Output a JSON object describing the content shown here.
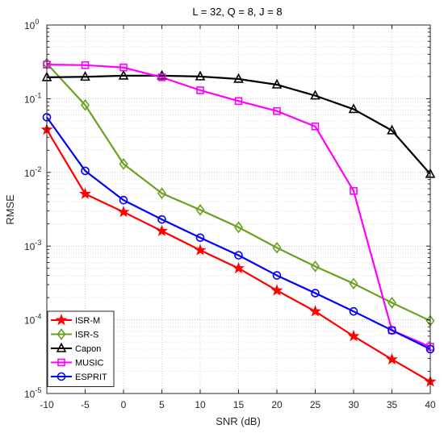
{
  "chart_data": {
    "type": "line",
    "title": "L = 32, Q = 8, J = 8",
    "xlabel": "SNR (dB)",
    "ylabel": "RMSE",
    "x": [
      -10,
      -5,
      0,
      5,
      10,
      15,
      20,
      25,
      30,
      35,
      40
    ],
    "xlim": [
      -10,
      40
    ],
    "ylim": [
      1e-05,
      1
    ],
    "yscale": "log",
    "grid": true,
    "legend_position": "bottom-left",
    "x_tick_labels": [
      "-10",
      "-5",
      "0",
      "5",
      "10",
      "15",
      "20",
      "25",
      "30",
      "35",
      "40"
    ],
    "y_tick_labels": [
      {
        "base": "10",
        "exp": "-5"
      },
      {
        "base": "10",
        "exp": "-4"
      },
      {
        "base": "10",
        "exp": "-3"
      },
      {
        "base": "10",
        "exp": "-2"
      },
      {
        "base": "10",
        "exp": "-1"
      },
      {
        "base": "10",
        "exp": "0"
      }
    ],
    "series": [
      {
        "name": "ISR-M",
        "color": "#ff0000",
        "marker": "star",
        "values": [
          0.038,
          0.0051,
          0.0029,
          0.0016,
          0.00088,
          0.0005,
          0.00025,
          0.00013,
          6e-05,
          2.9e-05,
          1.45e-05
        ]
      },
      {
        "name": "ISR-S",
        "color": "#6aa121",
        "marker": "diamond",
        "values": [
          0.3,
          0.082,
          0.013,
          0.0052,
          0.0031,
          0.0018,
          0.00095,
          0.00053,
          0.00031,
          0.00017,
          9.7e-05
        ]
      },
      {
        "name": "Capon",
        "color": "#000000",
        "marker": "triangle",
        "values": [
          0.195,
          0.198,
          0.205,
          0.205,
          0.2,
          0.185,
          0.155,
          0.11,
          0.072,
          0.037,
          0.0095
        ]
      },
      {
        "name": "MUSIC",
        "color": "#ff00ff",
        "marker": "square",
        "values": [
          0.29,
          0.285,
          0.265,
          0.195,
          0.13,
          0.093,
          0.068,
          0.042,
          0.0056,
          7.2e-05,
          4.3e-05
        ]
      },
      {
        "name": "ESPRIT",
        "color": "#0000ff",
        "marker": "circle",
        "values": [
          0.056,
          0.0105,
          0.0042,
          0.0023,
          0.0013,
          0.00075,
          0.0004,
          0.00023,
          0.00013,
          7.2e-05,
          4e-05
        ]
      }
    ]
  }
}
